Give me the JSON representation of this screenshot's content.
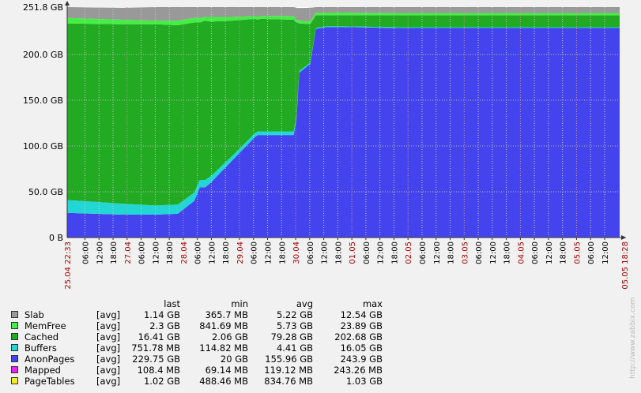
{
  "chart_data": {
    "type": "area",
    "stacked": true,
    "ylim": [
      0,
      251.8
    ],
    "y_unit": "GB",
    "y_ticks": [
      "0 B",
      "50.0 GB",
      "100.0 GB",
      "150.0 GB",
      "200.0 GB",
      "251.8 GB"
    ],
    "x_start_label": "25.04 22:33",
    "x_end_label": "05.05 18:28",
    "x_tick_labels": [
      "06:00",
      "12:00",
      "18:00",
      "27.04",
      "06:00",
      "12:00",
      "18:00",
      "28.04",
      "06:00",
      "12:00",
      "18:00",
      "29.04",
      "06:00",
      "12:00",
      "18:00",
      "30.04",
      "06:00",
      "12:00",
      "18:00",
      "01.05",
      "06:00",
      "12:00",
      "18:00",
      "02.05",
      "06:00",
      "12:00",
      "18:00",
      "03.05",
      "06:00",
      "12:00",
      "18:00",
      "04.05",
      "06:00",
      "12:00",
      "18:00",
      "05.05",
      "06:00",
      "12:00"
    ],
    "x": [
      0,
      0.1,
      0.16,
      0.2,
      0.23,
      0.24,
      0.25,
      0.26,
      0.3,
      0.34,
      0.345,
      0.35,
      0.41,
      0.415,
      0.42,
      0.44,
      0.45,
      0.47,
      0.5,
      0.6,
      0.7,
      0.8,
      0.9,
      1.0
    ],
    "series": [
      {
        "name": "AnonPages",
        "color": "#4444ee",
        "values": [
          27,
          25,
          25,
          26,
          40,
          55,
          55,
          60,
          85,
          110,
          112,
          112,
          112,
          130,
          180,
          190,
          228,
          230,
          230,
          229,
          229,
          229,
          229,
          229
        ]
      },
      {
        "name": "Buffers",
        "color": "#22d6d6",
        "values": [
          14,
          12,
          10,
          10,
          9,
          8,
          8,
          7,
          5,
          4,
          4,
          4,
          4,
          3,
          2,
          1.2,
          1.0,
          0.8,
          0.8,
          0.8,
          0.8,
          0.8,
          0.8,
          0.8
        ]
      },
      {
        "name": "Cached",
        "color": "#22aa22",
        "values": [
          193,
          196,
          198,
          196,
          186,
          172,
          174,
          169,
          147,
          125,
          122,
          123,
          122,
          102,
          52,
          42,
          14,
          12,
          12,
          13,
          13,
          13,
          13,
          13
        ]
      },
      {
        "name": "MemFree",
        "color": "#44ee44",
        "values": [
          6,
          5,
          4,
          5,
          5,
          5,
          4,
          5,
          4,
          3,
          3,
          3,
          4,
          3,
          3,
          3,
          2.5,
          3,
          3,
          2.5,
          2.5,
          2.5,
          2.5,
          2.5
        ]
      },
      {
        "name": "Slab",
        "color": "#999999",
        "values": [
          12,
          13,
          14.8,
          14.8,
          11.8,
          11.8,
          10.8,
          10.8,
          10.8,
          9.8,
          10.8,
          9.8,
          9.8,
          12.8,
          13.8,
          14.8,
          6.3,
          6.0,
          6.0,
          6.5,
          6.5,
          6.5,
          6.5,
          6.5
        ]
      }
    ],
    "legend": {
      "headers": [
        "last",
        "min",
        "avg",
        "max"
      ],
      "rows": [
        {
          "name": "Slab",
          "color": "#999999",
          "agg": "[avg]",
          "last": "1.14 GB",
          "min": "365.7 MB",
          "avg": "5.22 GB",
          "max": "12.54 GB"
        },
        {
          "name": "MemFree",
          "color": "#44ee44",
          "agg": "[avg]",
          "last": "2.3 GB",
          "min": "841.69 MB",
          "avg": "5.73 GB",
          "max": "23.89 GB"
        },
        {
          "name": "Cached",
          "color": "#22aa22",
          "agg": "[avg]",
          "last": "16.41 GB",
          "min": "2.06 GB",
          "avg": "79.28 GB",
          "max": "202.68 GB"
        },
        {
          "name": "Buffers",
          "color": "#22d6d6",
          "agg": "[avg]",
          "last": "751.78 MB",
          "min": "114.82 MB",
          "avg": "4.41 GB",
          "max": "16.05 GB"
        },
        {
          "name": "AnonPages",
          "color": "#4444ee",
          "agg": "[avg]",
          "last": "229.75 GB",
          "min": "20 GB",
          "avg": "155.96 GB",
          "max": "243.9 GB"
        },
        {
          "name": "Mapped",
          "color": "#ee22ee",
          "agg": "[avg]",
          "last": "108.4 MB",
          "min": "69.14 MB",
          "avg": "119.12 MB",
          "max": "243.26 MB"
        },
        {
          "name": "PageTables",
          "color": "#eeee22",
          "agg": "[avg]",
          "last": "1.02 GB",
          "min": "488.46 MB",
          "avg": "834.76 MB",
          "max": "1.03 GB"
        }
      ]
    }
  },
  "watermark": "http://www.zabbix.com"
}
